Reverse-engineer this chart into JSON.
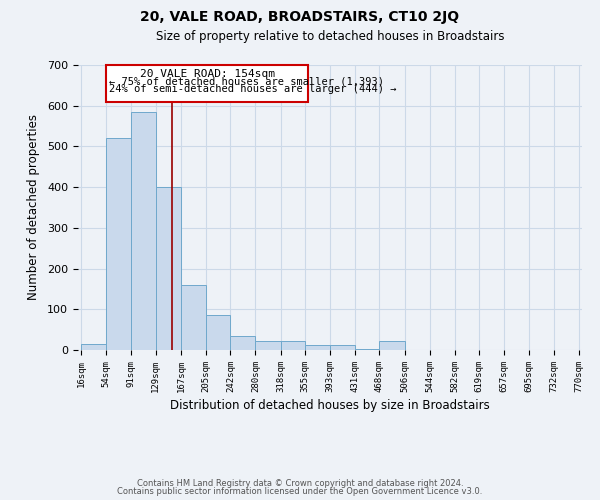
{
  "title": "20, VALE ROAD, BROADSTAIRS, CT10 2JQ",
  "subtitle": "Size of property relative to detached houses in Broadstairs",
  "xlabel": "Distribution of detached houses by size in Broadstairs",
  "ylabel": "Number of detached properties",
  "bin_edges": [
    16,
    54,
    91,
    129,
    167,
    205,
    242,
    280,
    318,
    355,
    393,
    431,
    468,
    506,
    544,
    582,
    619,
    657,
    695,
    732,
    770
  ],
  "bar_heights": [
    15,
    520,
    585,
    400,
    160,
    85,
    35,
    22,
    22,
    12,
    12,
    3,
    22,
    0,
    0,
    0,
    0,
    0,
    0,
    0
  ],
  "bar_color": "#c9d9ec",
  "bar_edge_color": "#6fa8cc",
  "grid_color": "#ccd9e8",
  "vline_x": 154,
  "vline_color": "#990000",
  "annotation_title": "20 VALE ROAD: 154sqm",
  "annotation_line1": "← 75% of detached houses are smaller (1,393)",
  "annotation_line2": "24% of semi-detached houses are larger (444) →",
  "annotation_box_color": "#cc0000",
  "ylim": [
    0,
    700
  ],
  "yticks": [
    0,
    100,
    200,
    300,
    400,
    500,
    600,
    700
  ],
  "footer1": "Contains HM Land Registry data © Crown copyright and database right 2024.",
  "footer2": "Contains public sector information licensed under the Open Government Licence v3.0.",
  "bg_color": "#eef2f7"
}
